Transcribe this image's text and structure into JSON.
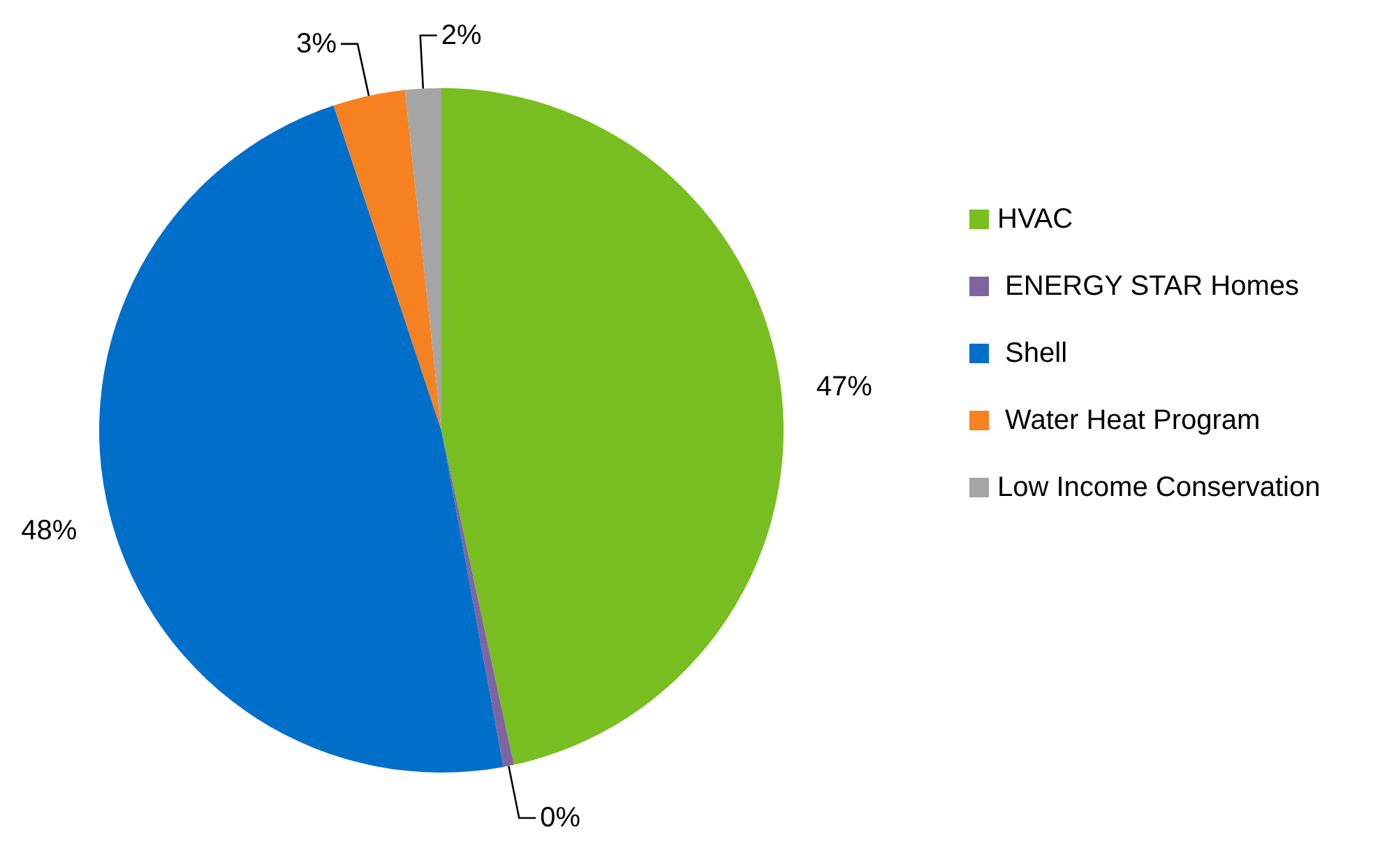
{
  "chart_data": {
    "type": "pie",
    "categories": [
      "HVAC",
      " ENERGY STAR Homes",
      " Shell",
      " Water Heat Program",
      "Low Income Conservation"
    ],
    "values": [
      46.6,
      0.5,
      47.8,
      3.4,
      1.7
    ],
    "colors": [
      "#78be20",
      "#8064a2",
      "#006fc9",
      "#f68121",
      "#a5a5a5"
    ],
    "value_labels": [
      "47%",
      "0%",
      "48%",
      "3%",
      "2%"
    ],
    "legend": "right"
  }
}
